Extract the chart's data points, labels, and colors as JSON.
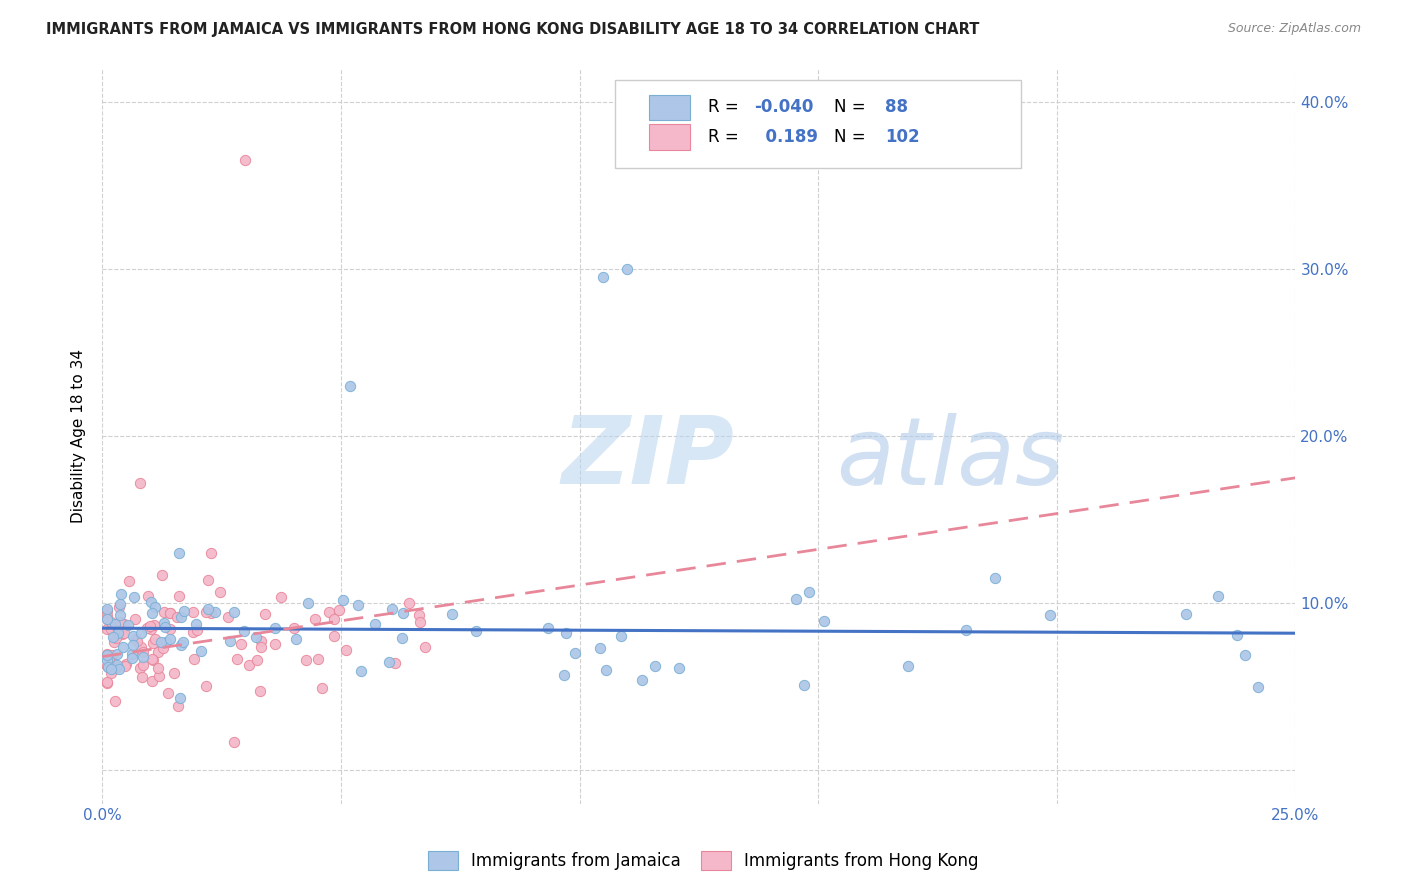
{
  "title": "IMMIGRANTS FROM JAMAICA VS IMMIGRANTS FROM HONG KONG DISABILITY AGE 18 TO 34 CORRELATION CHART",
  "source": "Source: ZipAtlas.com",
  "ylabel": "Disability Age 18 to 34",
  "xmin": 0.0,
  "xmax": 0.25,
  "ymin": -0.02,
  "ymax": 0.42,
  "jamaica_color": "#aec6e8",
  "jamaica_edge_color": "#7aafd4",
  "hongkong_color": "#f4b8ca",
  "hongkong_edge_color": "#e8879a",
  "jamaica_R": -0.04,
  "jamaica_N": 88,
  "hongkong_R": 0.189,
  "hongkong_N": 102,
  "legend_label_jamaica": "Immigrants from Jamaica",
  "legend_label_hongkong": "Immigrants from Hong Kong",
  "watermark_zip": "ZIP",
  "watermark_atlas": "atlas",
  "trend_color_jamaica": "#4472c4",
  "trend_color_hongkong": "#e8879a",
  "grid_color": "#d0d0d0",
  "title_color": "#222222",
  "source_color": "#888888",
  "tick_color": "#4472c4",
  "legend_R_N_color": "#4472c4",
  "jamaica_trend_y0": 0.085,
  "jamaica_trend_y1": 0.082,
  "hongkong_trend_y0": 0.068,
  "hongkong_trend_y1": 0.175
}
